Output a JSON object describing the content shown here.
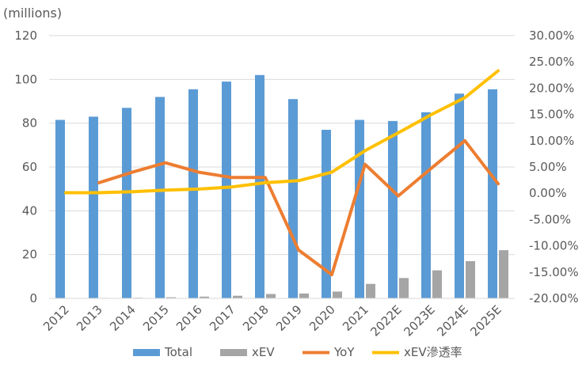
{
  "chart_data": {
    "type": "bar",
    "categories": [
      "2012",
      "2013",
      "2014",
      "2015",
      "2016",
      "2017",
      "2018",
      "2019",
      "2020",
      "2021",
      "2022E",
      "2023E",
      "2024E",
      "2025E"
    ],
    "unit_label": "(millions)",
    "series": [
      {
        "name": "Total",
        "type": "bar",
        "axis": "left",
        "color": "#5B9BD5",
        "values": [
          81.5,
          83,
          87,
          92,
          95.5,
          99,
          102,
          91,
          77,
          81.5,
          81,
          85,
          93.5,
          95.5
        ]
      },
      {
        "name": "xEV",
        "type": "bar",
        "axis": "left",
        "color": "#A5A5A5",
        "values": [
          0.1,
          0.2,
          0.3,
          0.5,
          0.8,
          1.2,
          2.0,
          2.2,
          3.1,
          6.6,
          9.3,
          12.8,
          17,
          22
        ]
      },
      {
        "name": "YoY",
        "type": "line",
        "axis": "right",
        "color": "#ED7D31",
        "values": [
          null,
          2.0,
          4.0,
          5.8,
          4.0,
          3.0,
          3.0,
          -10.8,
          -15.5,
          5.5,
          -0.5,
          4.8,
          10.0,
          1.8
        ]
      },
      {
        "name": "xEV滲透率",
        "type": "line",
        "axis": "right",
        "color": "#FFC000",
        "values": [
          0.1,
          0.1,
          0.3,
          0.6,
          0.8,
          1.2,
          2.0,
          2.4,
          4.0,
          8.1,
          11.5,
          15.0,
          18.2,
          23.3
        ]
      }
    ],
    "y_left": {
      "min": 0,
      "max": 120,
      "step": 20,
      "ticks": [
        "0",
        "20",
        "40",
        "60",
        "80",
        "100",
        "120"
      ]
    },
    "y_right": {
      "min": -20,
      "max": 30,
      "step": 5,
      "ticks": [
        "-20.00%",
        "-15.00%",
        "-10.00%",
        "-5.00%",
        "0.00%",
        "5.00%",
        "10.00%",
        "15.00%",
        "20.00%",
        "25.00%",
        "30.00%"
      ]
    },
    "grid": true,
    "legend_position": "bottom"
  }
}
